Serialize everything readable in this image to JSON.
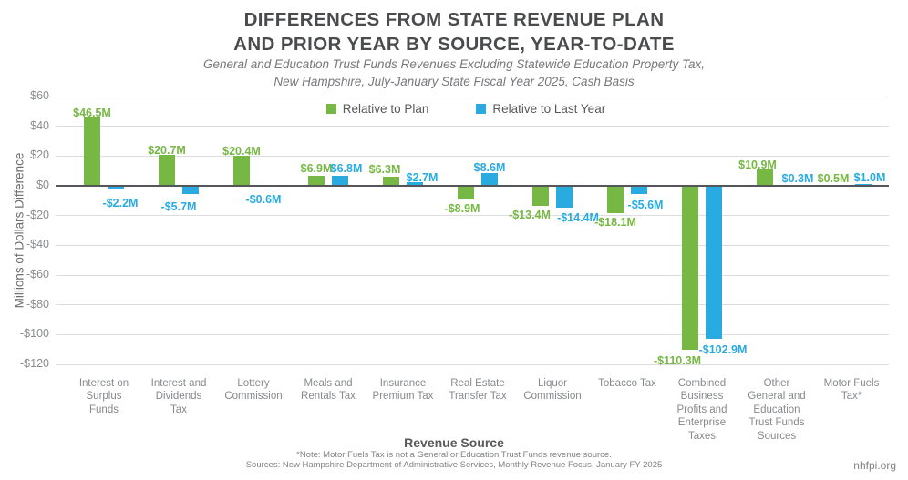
{
  "header": {
    "title_line1": "DIFFERENCES FROM STATE REVENUE PLAN",
    "title_line2": "AND PRIOR YEAR BY SOURCE, YEAR-TO-DATE",
    "subtitle_line1": "General and Education Trust Funds Revenues Excluding Statewide Education Property Tax,",
    "subtitle_line2": "New Hampshire, July-January State Fiscal Year 2025, Cash Basis"
  },
  "axes": {
    "y_label": "Millions of Dollars Difference",
    "x_label": "Revenue Source",
    "y_ticks": [
      "$60",
      "$40",
      "$20",
      "$0",
      "-$20",
      "-$40",
      "-$60",
      "-$80",
      "-$100",
      "-$120"
    ]
  },
  "footer": {
    "footnote": "*Note: Motor Fuels Tax is not a General or Education Trust Funds revenue source.",
    "sources": "Sources: New Hampshire Department of Administrative Services, Monthly Revenue Focus, January FY 2025",
    "watermark": "nhfpi.org"
  },
  "colors": {
    "green": "#76b843",
    "blue": "#29abe2",
    "grid": "#dcddde",
    "zero_line": "#55565a",
    "axis_text": "#8a8c8e"
  },
  "chart_data": {
    "type": "bar",
    "title": "DIFFERENCES FROM STATE REVENUE PLAN AND PRIOR YEAR BY SOURCE, YEAR-TO-DATE",
    "subtitle": "General and Education Trust Funds Revenues Excluding Statewide Education Property Tax, New Hampshire, July-January State Fiscal Year 2025, Cash Basis",
    "xlabel": "Revenue Source",
    "ylabel": "Millions of Dollars Difference",
    "units": "millions of US dollars",
    "ylim": [
      -120,
      60
    ],
    "y_tick_step": 20,
    "grid": true,
    "legend_position": "top-center",
    "categories": [
      "Interest on\nSurplus\nFunds",
      "Interest and\nDividends\nTax",
      "Lottery\nCommission",
      "Meals and\nRentals Tax",
      "Insurance\nPremium Tax",
      "Real Estate\nTransfer Tax",
      "Liquor\nCommission",
      "Tobacco Tax",
      "Combined\nBusiness\nProfits and\nEnterprise\nTaxes",
      "Other\nGeneral and\nEducation\nTrust Funds\nSources",
      "Motor Fuels\nTax*"
    ],
    "series": [
      {
        "name": "Relative to Plan",
        "color": "#76b843",
        "pattern": "solid",
        "values": [
          46.5,
          20.7,
          20.4,
          6.9,
          6.3,
          -8.9,
          -13.4,
          -18.1,
          -110.3,
          10.9,
          0.5
        ],
        "labels": [
          "$46.5M",
          "$20.7M",
          "$20.4M",
          "$6.9M",
          "$6.3M",
          "-$8.9M",
          "-$13.4M",
          "-$18.1M",
          "-$110.3M",
          "$10.9M",
          "$0.5M"
        ],
        "label_offsets": [
          [
            0,
            4
          ],
          [
            0,
            3
          ],
          [
            0,
            3
          ],
          [
            0,
            0
          ],
          [
            -7,
            0
          ],
          [
            -4,
            0
          ],
          [
            -12,
            0
          ],
          [
            0,
            0
          ],
          [
            -14,
            2
          ],
          [
            -8,
            3
          ],
          [
            -7,
            1
          ]
        ]
      },
      {
        "name": "Relative to Last Year",
        "color": "#29abe2",
        "pattern": "dots",
        "values": [
          -2.2,
          -5.7,
          -0.6,
          6.8,
          2.7,
          8.6,
          -14.4,
          -5.6,
          -102.9,
          0.3,
          1.0
        ],
        "labels": [
          "-$2.2M",
          "-$5.7M",
          "-$0.6M",
          "$6.8M",
          "$2.7M",
          "$8.6M",
          "-$14.4M",
          "-$5.6M",
          "-$102.9M",
          "$0.3M",
          "$1.0M"
        ],
        "label_offsets": [
          [
            5,
            5
          ],
          [
            -13,
            4
          ],
          [
            -2,
            4
          ],
          [
            7,
            0
          ],
          [
            8,
            3
          ],
          [
            0,
            2
          ],
          [
            15,
            1
          ],
          [
            7,
            2
          ],
          [
            10,
            2
          ],
          [
            10,
            1
          ],
          [
            7,
            1
          ]
        ]
      }
    ]
  }
}
